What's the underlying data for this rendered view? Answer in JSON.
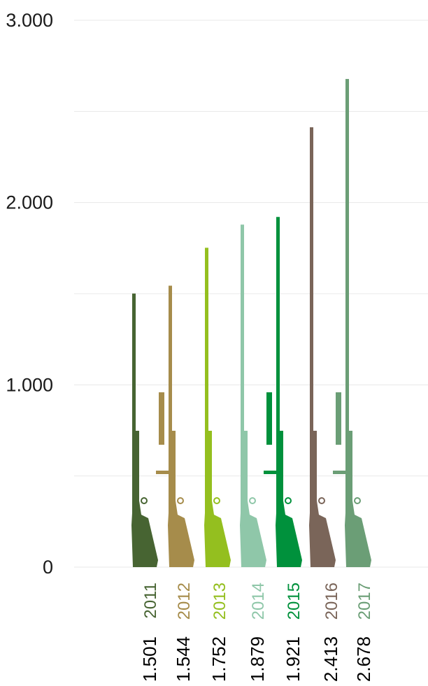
{
  "chart_data": {
    "type": "bar",
    "title": "",
    "xlabel": "",
    "ylabel": "",
    "ylim": [
      0,
      3000
    ],
    "grid": true,
    "y_ticks": [
      "0",
      "1.000",
      "2.000",
      "3.000"
    ],
    "y_tick_values": [
      0,
      1000,
      2000,
      3000
    ],
    "gridline_values": [
      0,
      500,
      1000,
      1500,
      2000,
      2500,
      3000
    ],
    "categories": [
      "2011",
      "2012",
      "2013",
      "2014",
      "2015",
      "2016",
      "2017"
    ],
    "values": [
      1501,
      1544,
      1752,
      1879,
      1921,
      2413,
      2678
    ],
    "value_labels": [
      "1.501",
      "1.544",
      "1.752",
      "1.879",
      "1.921",
      "2.413",
      "2.678"
    ],
    "colors": [
      "#476432",
      "#a68c4b",
      "#94bf1f",
      "#8fc7a9",
      "#00913c",
      "#7a6559",
      "#6b9e76"
    ],
    "mark_icon": "rifle-icon"
  }
}
